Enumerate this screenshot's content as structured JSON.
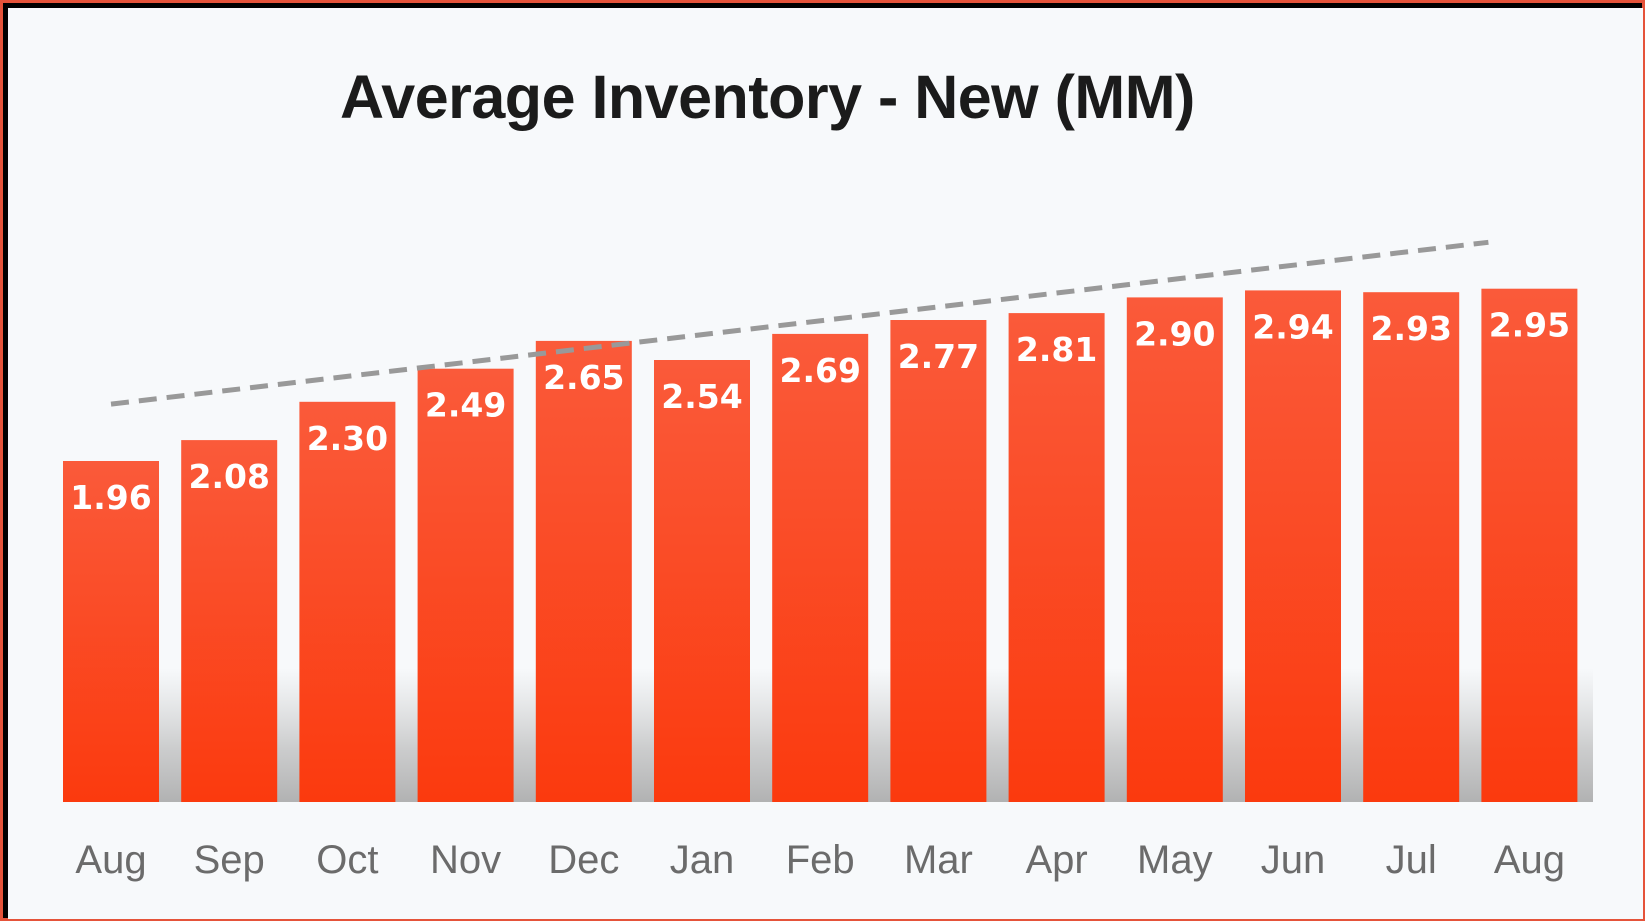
{
  "chart_data": {
    "type": "bar",
    "title": "Average Inventory - New (MM)",
    "xlabel": "",
    "ylabel": "",
    "categories": [
      "Aug",
      "Sep",
      "Oct",
      "Nov",
      "Dec",
      "Jan",
      "Feb",
      "Mar",
      "Apr",
      "May",
      "Jun",
      "Jul",
      "Aug"
    ],
    "values": [
      1.96,
      2.08,
      2.3,
      2.49,
      2.65,
      2.54,
      2.69,
      2.77,
      2.81,
      2.9,
      2.94,
      2.93,
      2.95
    ],
    "value_labels": [
      "1.96",
      "2.08",
      "2.30",
      "2.49",
      "2.65",
      "2.54",
      "2.69",
      "2.77",
      "2.81",
      "2.90",
      "2.94",
      "2.93",
      "2.95"
    ],
    "ylim": [
      0,
      3.3
    ],
    "grid": false,
    "legend": "none",
    "trendline": {
      "style": "dashed",
      "color": "#999999"
    },
    "colors": {
      "bar_top": "#fa5a3a",
      "bar_bottom": "#fb3a0e",
      "frame_border": "#e5533a",
      "background": "#f7f9fb"
    }
  }
}
